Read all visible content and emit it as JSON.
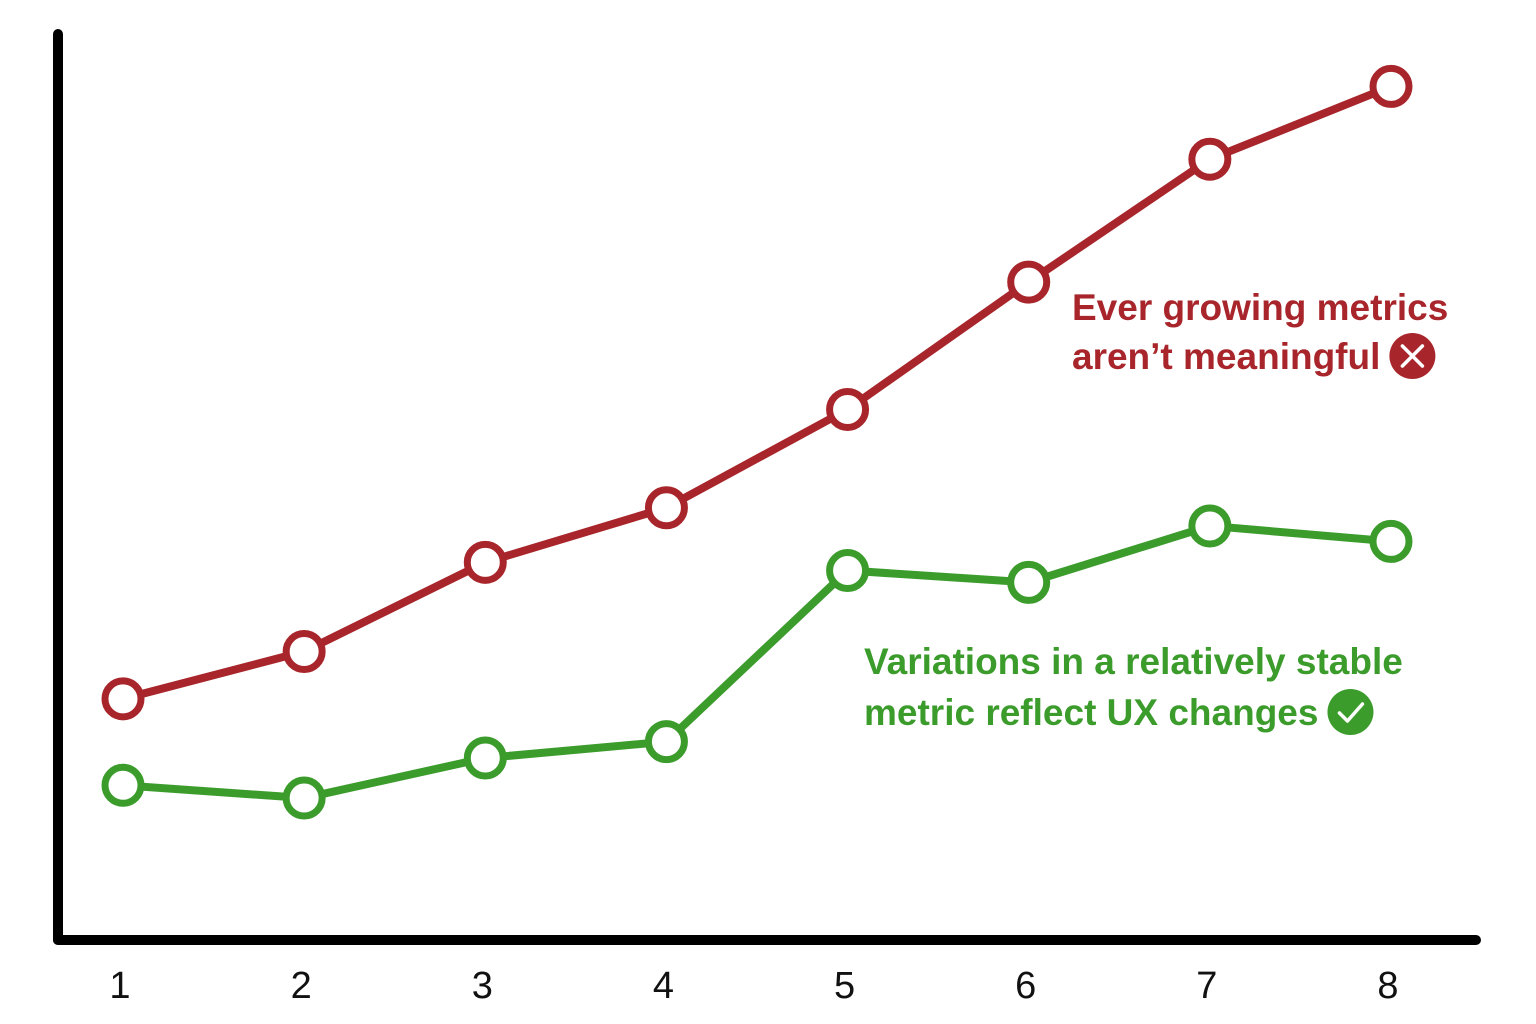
{
  "chart_data": {
    "type": "line",
    "x": [
      1,
      2,
      3,
      4,
      5,
      6,
      7,
      8
    ],
    "xticks": [
      "1",
      "2",
      "3",
      "4",
      "5",
      "6",
      "7",
      "8"
    ],
    "ylim": [
      0,
      100
    ],
    "grid": false,
    "legend": "none",
    "series": [
      {
        "key": "growing",
        "color": "#a8262b",
        "values": [
          26.5,
          31.7,
          41.5,
          47.5,
          58.3,
          72.3,
          85.8,
          93.8
        ]
      },
      {
        "key": "stable",
        "color": "#3b9c2c",
        "values": [
          17.0,
          15.6,
          20.0,
          21.8,
          40.6,
          39.3,
          45.5,
          43.8
        ]
      }
    ],
    "annotations": [
      {
        "series_key": "growing",
        "lines": [
          "Ever growing metrics",
          "aren’t meaningful"
        ],
        "icon": "cross-circle-icon",
        "color": "#a8262b"
      },
      {
        "series_key": "stable",
        "lines": [
          "Variations in a relatively stable",
          "metric reflect UX changes"
        ],
        "icon": "check-circle-icon",
        "color": "#3b9c2c"
      }
    ]
  }
}
